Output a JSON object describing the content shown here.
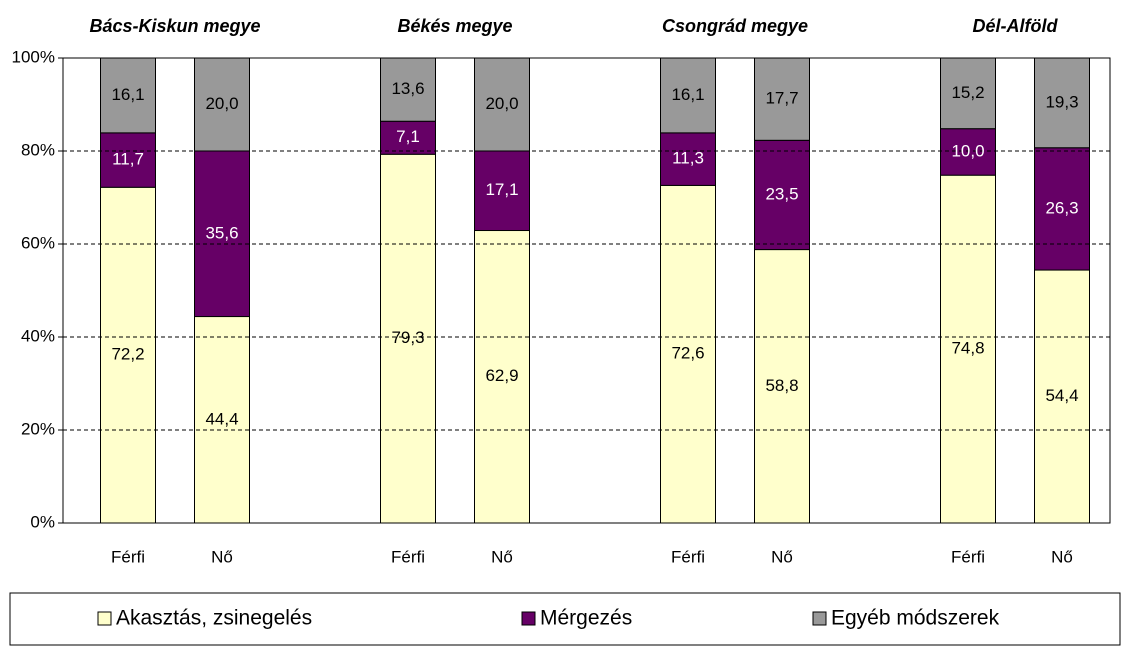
{
  "chart_data": {
    "type": "bar",
    "stacked": true,
    "group_titles": [
      "Bács-Kiskun megye",
      "Békés megye",
      "Csongrád megye",
      "Dél-Alföld"
    ],
    "categories": [
      "Férfi",
      "Nő",
      "Férfi",
      "Nő",
      "Férfi",
      "Nő",
      "Férfi",
      "Nő"
    ],
    "series": [
      {
        "name": "Akasztás, zsinegelés",
        "color": "#ffffcc",
        "values": [
          72.2,
          44.4,
          79.3,
          62.9,
          72.6,
          58.8,
          74.8,
          54.4
        ],
        "value_labels": [
          "72,2",
          "44,4",
          "79,3",
          "62,9",
          "72,6",
          "58,8",
          "74,8",
          "54,4"
        ]
      },
      {
        "name": "Mérgezés",
        "color": "#660066",
        "values": [
          11.7,
          35.6,
          7.1,
          17.1,
          11.3,
          23.5,
          10.0,
          26.3
        ],
        "value_labels": [
          "11,7",
          "35,6",
          "7,1",
          "17,1",
          "11,3",
          "23,5",
          "10,0",
          "26,3"
        ]
      },
      {
        "name": "Egyéb módszerek",
        "color": "#999999",
        "values": [
          16.1,
          20.0,
          13.6,
          20.0,
          16.1,
          17.7,
          15.2,
          19.3
        ],
        "value_labels": [
          "16,1",
          "20,0",
          "13,6",
          "20,0",
          "16,1",
          "17,7",
          "15,2",
          "19,3"
        ]
      }
    ],
    "ylim": [
      0,
      100
    ],
    "yticks": [
      {
        "value": 0,
        "label": "0%"
      },
      {
        "value": 20,
        "label": "20%"
      },
      {
        "value": 40,
        "label": "40%"
      },
      {
        "value": 60,
        "label": "60%"
      },
      {
        "value": 80,
        "label": "80%"
      },
      {
        "value": 100,
        "label": "100%"
      }
    ],
    "grid": true,
    "legend": "bottom"
  }
}
